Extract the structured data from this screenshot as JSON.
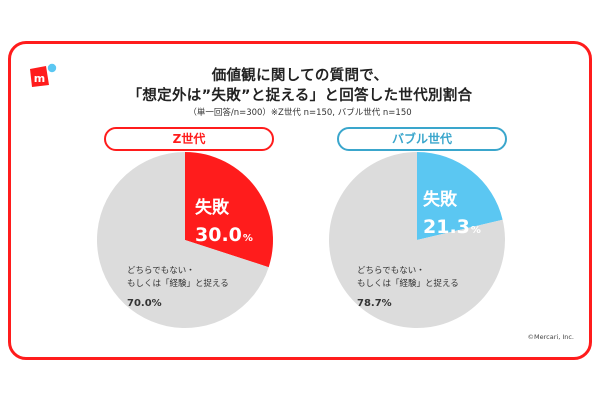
{
  "header": {
    "title_line1": "価値観に関しての質問で、",
    "title_line2": "「想定外は”失敗”と捉える」と回答した世代別割合",
    "subtitle": "（単一回答/n=300）※Z世代 n=150, バブル世代 n=150"
  },
  "brand": {
    "logo_letter": "m",
    "logo_icon": "mercari-logo-icon",
    "copyright": "©Mercari, Inc.",
    "accent_red": "#ff1c1c",
    "accent_blue": "#3aa6cc"
  },
  "chart_data": [
    {
      "type": "pie",
      "title": "Z世代",
      "slices": [
        {
          "label": "失敗",
          "value": 30.0,
          "value_text": "30.0",
          "unit": "%",
          "color": "#ff1c1c",
          "label_color": "#ffffff"
        },
        {
          "label_line1": "どちらでもない・",
          "label_line2": "もしくは「経験」と捉える",
          "value": 70.0,
          "value_text": "70.0%",
          "color": "#dcdcdc",
          "label_color": "#333333"
        }
      ]
    },
    {
      "type": "pie",
      "title": "バブル世代",
      "slices": [
        {
          "label": "失敗",
          "value": 21.3,
          "value_text": "21.3",
          "unit": "%",
          "color": "#5bc7f2",
          "label_color": "#ffffff"
        },
        {
          "label_line1": "どちらでもない・",
          "label_line2": "もしくは「経験」と捉える",
          "value": 78.7,
          "value_text": "78.7%",
          "color": "#dcdcdc",
          "label_color": "#333333"
        }
      ]
    }
  ]
}
